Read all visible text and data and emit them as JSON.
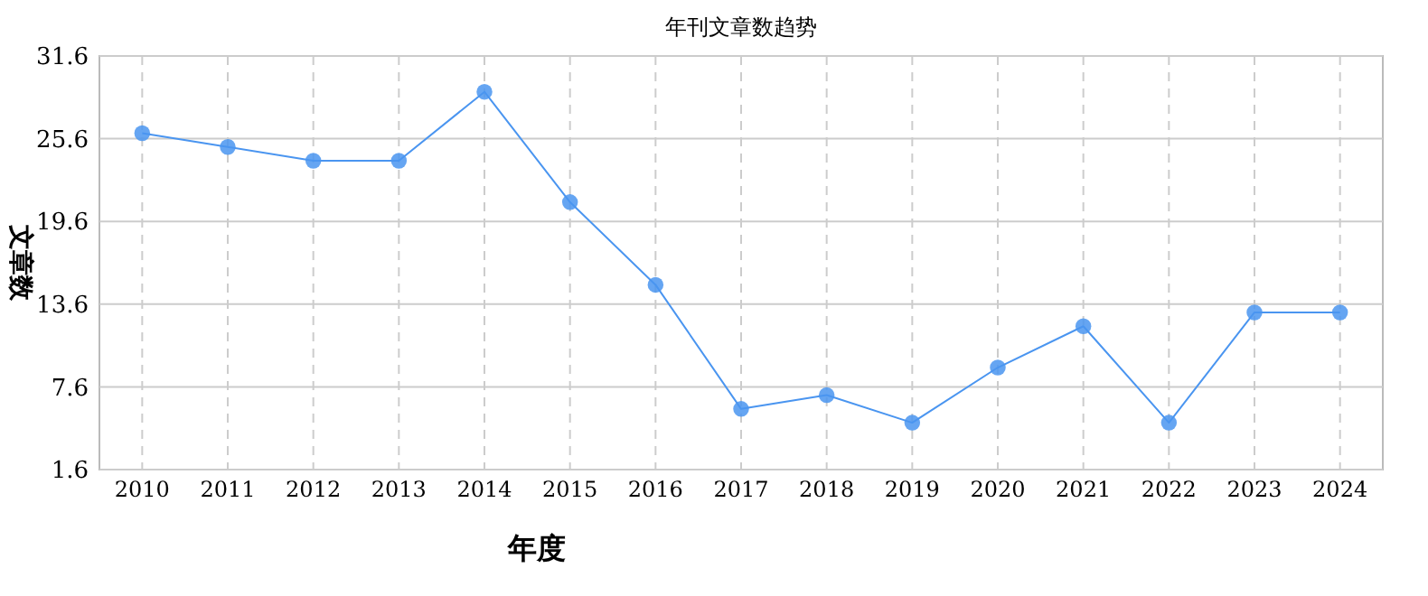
{
  "chart_data": {
    "type": "line",
    "title": "年刊文章数趋势",
    "xlabel": "年度",
    "ylabel": "文章数",
    "categories": [
      "2010",
      "2011",
      "2012",
      "2013",
      "2014",
      "2015",
      "2016",
      "2017",
      "2018",
      "2019",
      "2020",
      "2021",
      "2022",
      "2023",
      "2024"
    ],
    "series": [
      {
        "color": "#4a95f0",
        "values": [
          26,
          25,
          24,
          24,
          29,
          21,
          15,
          6,
          7,
          5,
          9,
          12,
          5,
          13,
          13
        ]
      }
    ],
    "ylim": [
      1.6,
      31.6
    ],
    "yticks": [
      1.6,
      7.6,
      13.6,
      19.6,
      25.6,
      31.6
    ],
    "grid": true,
    "marker": "circle"
  }
}
